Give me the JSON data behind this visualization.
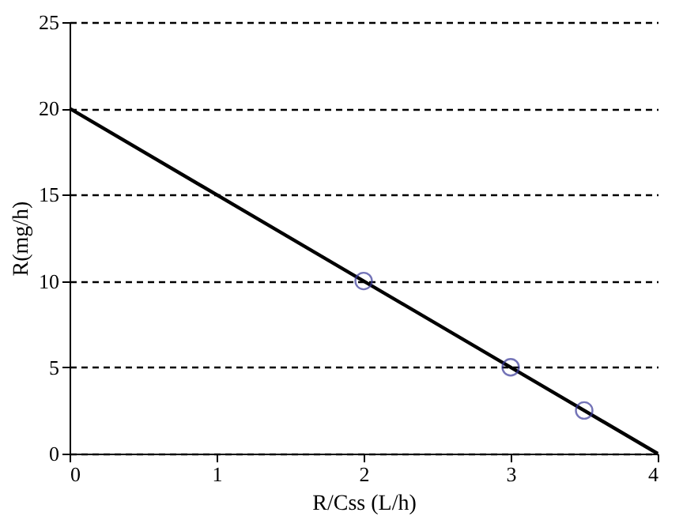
{
  "chart_data": {
    "type": "line",
    "xlabel": "R/Css (L/h)",
    "ylabel": "R(mg/h)",
    "series": [
      {
        "color": "#000000",
        "x": [
          0,
          4
        ],
        "values": [
          20,
          0
        ],
        "line_style": "solid"
      },
      {
        "type": "scatter",
        "color": "#3a3a9a",
        "x": [
          2,
          3,
          3.5
        ],
        "values": [
          10,
          5,
          2.5
        ],
        "marker": "circle"
      }
    ],
    "xlim": [
      0,
      4
    ],
    "xticks": [
      0,
      1,
      2,
      3,
      4
    ],
    "ylim": [
      0,
      25
    ],
    "yticks": [
      0,
      5,
      10,
      15,
      20,
      25
    ],
    "grid": "y"
  }
}
